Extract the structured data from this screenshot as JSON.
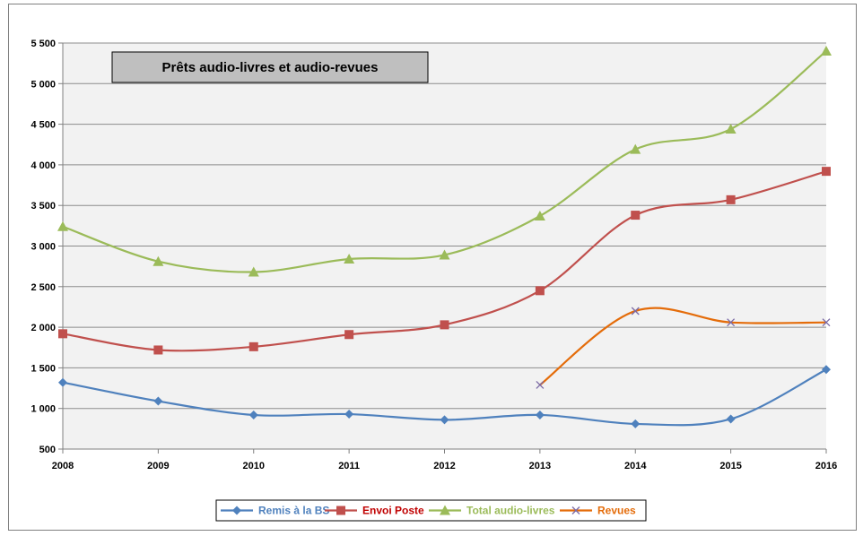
{
  "chart_data": {
    "type": "line",
    "title": "Prêts audio-livres et audio-revues",
    "xlabel": "",
    "ylabel": "",
    "categories": [
      "2008",
      "2009",
      "2010",
      "2011",
      "2012",
      "2013",
      "2014",
      "2015",
      "2016"
    ],
    "ylim": [
      500,
      5500
    ],
    "yticks": [
      500,
      1000,
      1500,
      2000,
      2500,
      3000,
      3500,
      4000,
      4500,
      5000,
      5500
    ],
    "ytick_labels": [
      "500",
      "1 000",
      "1 500",
      "2 000",
      "2 500",
      "3 000",
      "3 500",
      "4 000",
      "4 500",
      "5 000",
      "5 500"
    ],
    "grid": true,
    "legend_position": "bottom",
    "plot_background": "#f2f2f2",
    "series": [
      {
        "name": "Remis à la BS",
        "color": "#4f81bd",
        "marker": "diamond",
        "values": [
          1320,
          1090,
          920,
          930,
          860,
          920,
          810,
          870,
          1480
        ]
      },
      {
        "name": "Envoi Poste",
        "color": "#c0504d",
        "marker": "square",
        "values": [
          1920,
          1720,
          1760,
          1910,
          2030,
          2450,
          3380,
          3570,
          3920
        ]
      },
      {
        "name": "Total audio-livres",
        "color": "#9bbb59",
        "marker": "triangle",
        "values": [
          3240,
          2810,
          2680,
          2840,
          2890,
          3370,
          4190,
          4440,
          5400
        ]
      },
      {
        "name": "Revues",
        "color": "#e46c0a",
        "marker_color": "#7b6aa6",
        "marker": "cross",
        "values": [
          null,
          null,
          null,
          null,
          null,
          1290,
          2200,
          2060,
          2060
        ]
      }
    ]
  }
}
